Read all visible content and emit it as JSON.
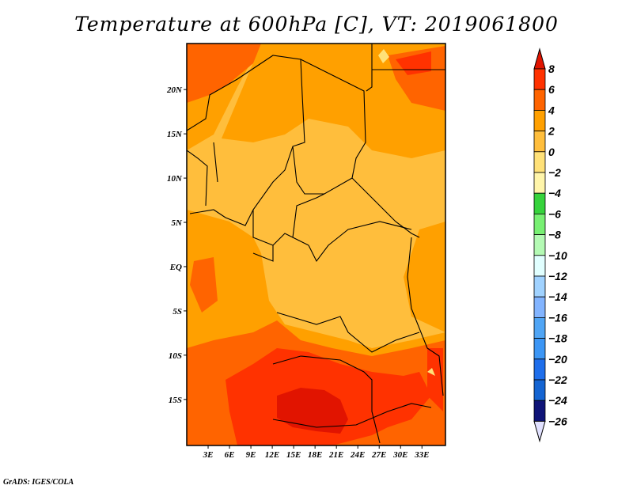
{
  "title": "Temperature at 600hPa [C], VT: 2019061800",
  "footer": "GrADS: IGES/COLA",
  "map": {
    "lon_ticks": [
      "3E",
      "6E",
      "9E",
      "12E",
      "15E",
      "18E",
      "21E",
      "24E",
      "27E",
      "30E",
      "33E"
    ],
    "lon_values": [
      3,
      6,
      9,
      12,
      15,
      18,
      21,
      24,
      27,
      30,
      33
    ],
    "lat_ticks": [
      "20N",
      "15N",
      "10N",
      "5N",
      "EQ",
      "5S",
      "10S",
      "15S"
    ],
    "lat_values": [
      20,
      15,
      10,
      5,
      0,
      -5,
      -10,
      -15
    ],
    "lon_range": [
      0,
      36.3
    ],
    "lat_range": [
      -20.2,
      25.2
    ]
  },
  "colorbar": {
    "labels": [
      "8",
      "6",
      "4",
      "2",
      "0",
      "-2",
      "-4",
      "-6",
      "-8",
      "-10",
      "-12",
      "-14",
      "-16",
      "-18",
      "-20",
      "-22",
      "-24",
      "-26"
    ],
    "top_color": "#e11400",
    "colors": [
      "#ff3200",
      "#ff6400",
      "#ffa000",
      "#ffbe3c",
      "#ffe178",
      "#fff5aa",
      "#36d33c",
      "#78f073",
      "#b4fab4",
      "#e1ffff",
      "#a0d2ff",
      "#82b4ff",
      "#50a5f5",
      "#3c96f5",
      "#1e6eeb",
      "#1464d2",
      "#0f1478"
    ],
    "bottom_color": "#e1e1ff"
  }
}
